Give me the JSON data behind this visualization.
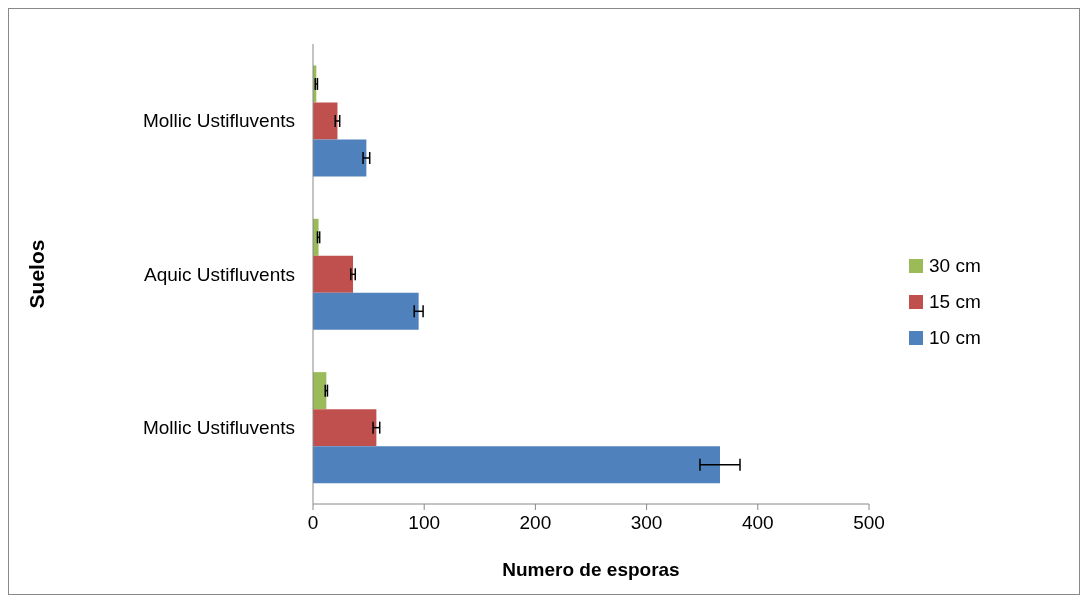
{
  "chart_data": {
    "type": "bar",
    "orientation": "horizontal",
    "xlabel": "Numero de esporas",
    "ylabel": "Suelos",
    "categories": [
      "Mollic Ustifluvents",
      "Aquic Ustifluvents",
      "Mollic Ustifluvents"
    ],
    "series": [
      {
        "name": "30 cm",
        "color": "#9bbb59",
        "values": [
          3,
          5,
          12
        ],
        "errors": [
          1,
          1,
          1
        ]
      },
      {
        "name": "15 cm",
        "color": "#c0504d",
        "values": [
          22,
          36,
          57
        ],
        "errors": [
          2,
          2,
          3
        ]
      },
      {
        "name": "10 cm",
        "color": "#4f81bd",
        "values": [
          48,
          95,
          366
        ],
        "errors": [
          3,
          4,
          18
        ]
      }
    ],
    "xlim": [
      0,
      500
    ],
    "xticks": [
      0,
      100,
      200,
      300,
      400,
      500
    ],
    "grid": false,
    "legend": "right"
  }
}
